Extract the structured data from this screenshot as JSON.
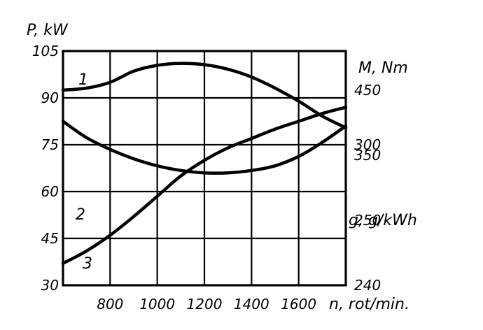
{
  "chart_data": {
    "type": "line",
    "x_axis": {
      "label": "n, rot/min.",
      "ticks": [
        800,
        1000,
        1200,
        1400,
        1600
      ],
      "range": [
        600,
        1800
      ]
    },
    "left_axis": {
      "label": "P, kW",
      "ticks": [
        30,
        45,
        60,
        75,
        90,
        105
      ],
      "range": [
        30,
        105
      ]
    },
    "right_axes": [
      {
        "label": "M, Nm",
        "ticks": [
          250,
          350,
          450
        ],
        "range": [
          150,
          510
        ]
      },
      {
        "label": "g, g/kWh",
        "ticks": [
          240,
          300
        ],
        "range": [
          240,
          340
        ]
      }
    ],
    "grid": true,
    "series": [
      {
        "name": "1",
        "axis": "M, Nm",
        "x": [
          600,
          700,
          800,
          900,
          1000,
          1100,
          1200,
          1300,
          1400,
          1500,
          1600,
          1700,
          1800
        ],
        "y": [
          450,
          453,
          462,
          479,
          488,
          491,
          489,
          482,
          470,
          453,
          433,
          410,
          392
        ]
      },
      {
        "name": "2",
        "axis": "g, g/kWh",
        "x": [
          600,
          700,
          800,
          900,
          1000,
          1100,
          1200,
          1300,
          1400,
          1500,
          1600,
          1700,
          1800
        ],
        "y": [
          310,
          303,
          298,
          294,
          291,
          289,
          288,
          288,
          289,
          291,
          295,
          301,
          308
        ]
      },
      {
        "name": "3",
        "axis": "P, kW",
        "x": [
          600,
          700,
          800,
          900,
          1000,
          1100,
          1200,
          1300,
          1400,
          1500,
          1600,
          1700,
          1800
        ],
        "y": [
          37,
          41,
          46,
          52,
          58.5,
          65,
          70,
          74,
          77,
          80,
          82.5,
          85,
          87
        ]
      }
    ]
  }
}
